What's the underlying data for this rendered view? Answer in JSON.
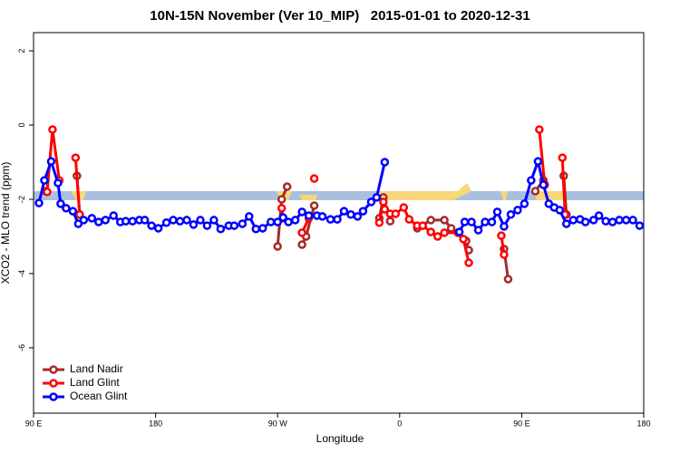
{
  "chart_data": {
    "type": "line",
    "title": "10N-15N November (Ver 10_MIP)   2015-01-01 to 2020-12-31",
    "x_label": "Longitude",
    "y_label": "XCO2 - MLO trend (ppm)",
    "xlim": [
      90,
      540
    ],
    "ylim": [
      -7.76,
      2.49
    ],
    "xticks": [
      {
        "value": 90,
        "label": "90 E"
      },
      180,
      {
        "value": 270,
        "label": "90 W"
      },
      {
        "value": 360,
        "label": "0"
      },
      {
        "value": 450,
        "label": "90 E"
      },
      {
        "value": 540,
        "label": "180"
      }
    ],
    "yticks": [
      2,
      0,
      -2,
      -4,
      -6
    ],
    "legend": "bottom-left",
    "series": [
      {
        "name": "Land Nadir",
        "color": "#a52a2a",
        "x": [
          99,
          null,
          122,
          124,
          null,
          270,
          273,
          277,
          null,
          288,
          291,
          297,
          null,
          345,
          348,
          353,
          null,
          373,
          383,
          393,
          398,
          409,
          411,
          null,
          437,
          440,
          null,
          460,
          466,
          null,
          481,
          483
        ],
        "values": [
          -1.78,
          null,
          -1.37,
          -2.41,
          null,
          -3.27,
          -2.0,
          -1.66,
          null,
          -3.22,
          -3.0,
          -2.17,
          null,
          -2.51,
          -1.95,
          -2.59,
          null,
          -2.78,
          -2.56,
          -2.56,
          -2.78,
          -3.12,
          -3.37,
          null,
          -3.34,
          -4.15,
          null,
          -1.78,
          -1.49,
          null,
          -1.37,
          -2.41
        ]
      },
      {
        "name": "Land Glint",
        "color": "#ff0000",
        "x": [
          100,
          104,
          109,
          null,
          121,
          124,
          null,
          273,
          274,
          null,
          288,
          293,
          null,
          297,
          null,
          345,
          348,
          349,
          353,
          357,
          363,
          367,
          373,
          377,
          383,
          388,
          393,
          403,
          407,
          411,
          null,
          435,
          437,
          null,
          463,
          467,
          null,
          480,
          482
        ],
        "values": [
          -1.8,
          -0.12,
          -1.49,
          null,
          -0.88,
          -2.41,
          null,
          -2.24,
          -2.51,
          null,
          -2.9,
          -2.51,
          null,
          -1.44,
          null,
          -2.63,
          -2.07,
          -2.27,
          -2.39,
          -2.39,
          -2.22,
          -2.54,
          -2.71,
          -2.71,
          -2.88,
          -3.0,
          -2.9,
          -2.9,
          -3.07,
          -3.71,
          null,
          -2.98,
          -3.49,
          null,
          -0.12,
          -1.61,
          null,
          -0.88,
          -2.41
        ]
      },
      {
        "name": "Ocean Glint",
        "color": "#0000ff",
        "x": [
          94,
          98,
          103,
          108,
          110,
          114,
          119,
          123,
          127,
          133,
          138,
          143,
          149,
          154,
          158,
          163,
          168,
          172,
          177,
          182,
          188,
          193,
          198,
          203,
          208,
          213,
          218,
          223,
          228,
          234,
          238,
          244,
          249,
          254,
          259,
          265,
          270,
          274,
          278,
          283,
          288,
          293,
          299,
          303,
          309,
          314,
          319,
          324,
          329,
          333,
          339,
          343,
          349,
          null,
          404,
          408,
          413,
          418,
          423,
          428,
          432,
          437,
          442,
          447,
          452,
          457,
          462,
          466,
          470,
          474,
          478,
          483,
          488,
          493,
          497,
          503,
          507,
          512,
          517,
          522,
          527,
          532,
          537
        ],
        "values": [
          -2.1,
          -1.49,
          -0.98,
          -1.56,
          -2.12,
          -2.24,
          -2.32,
          -2.66,
          -2.56,
          -2.51,
          -2.61,
          -2.56,
          -2.44,
          -2.61,
          -2.59,
          -2.59,
          -2.56,
          -2.56,
          -2.71,
          -2.78,
          -2.63,
          -2.56,
          -2.59,
          -2.56,
          -2.68,
          -2.56,
          -2.71,
          -2.56,
          -2.8,
          -2.71,
          -2.71,
          -2.66,
          -2.46,
          -2.8,
          -2.78,
          -2.61,
          -2.61,
          -2.49,
          -2.61,
          -2.56,
          -2.34,
          -2.44,
          -2.44,
          -2.46,
          -2.54,
          -2.54,
          -2.32,
          -2.41,
          -2.46,
          -2.32,
          -2.07,
          -1.95,
          -1.0,
          null,
          -2.88,
          -2.61,
          -2.61,
          -2.83,
          -2.61,
          -2.61,
          -2.34,
          -2.73,
          -2.41,
          -2.29,
          -2.12,
          -1.49,
          -0.98,
          -1.61,
          -2.12,
          -2.22,
          -2.29,
          -2.66,
          -2.56,
          -2.54,
          -2.61,
          -2.56,
          -2.44,
          -2.59,
          -2.61,
          -2.56,
          -2.56,
          -2.56,
          -2.71
        ]
      }
    ]
  }
}
